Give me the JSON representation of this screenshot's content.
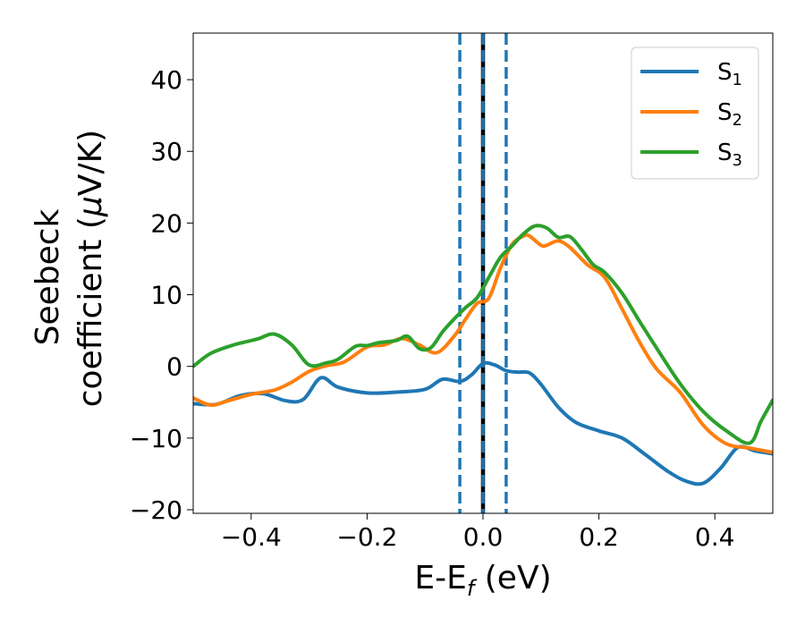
{
  "chart_data": {
    "type": "line",
    "title": "",
    "xlabel": "E-E",
    "xlabel_sub": "f",
    "xlabel_unit": " (eV)",
    "ylabel_line1": "Seebeck",
    "ylabel_line2": "coefficient  (",
    "ylabel_mu": "μ",
    "ylabel_unit_tail": "V/K)",
    "xlim": [
      -0.5,
      0.5
    ],
    "ylim": [
      -20.5,
      46.5
    ],
    "xticks": [
      -0.4,
      -0.2,
      0.0,
      0.2,
      0.4
    ],
    "xtick_labels": [
      "−0.4",
      "−0.2",
      "0.0",
      "0.2",
      "0.4"
    ],
    "yticks": [
      -20,
      -10,
      0,
      10,
      20,
      30,
      40
    ],
    "ytick_labels": [
      "−20",
      "−10",
      "0",
      "10",
      "20",
      "30",
      "40"
    ],
    "grid": false,
    "legend_position": "top-right",
    "vlines": [
      {
        "x": -0.04,
        "style": "dashed",
        "color": "#1f77b4"
      },
      {
        "x": 0.0,
        "style": "solid",
        "color": "#000000"
      },
      {
        "x": 0.0,
        "style": "dashed",
        "color": "#1f77b4"
      },
      {
        "x": 0.04,
        "style": "dashed",
        "color": "#1f77b4"
      }
    ],
    "series": [
      {
        "name": "S",
        "name_sub": "1",
        "color": "#1f77b4",
        "x": [
          -0.5,
          -0.46,
          -0.42,
          -0.38,
          -0.34,
          -0.31,
          -0.28,
          -0.25,
          -0.2,
          -0.15,
          -0.1,
          -0.07,
          -0.04,
          -0.02,
          0.0,
          0.02,
          0.04,
          0.06,
          0.08,
          0.1,
          0.13,
          0.16,
          0.2,
          0.24,
          0.28,
          0.32,
          0.35,
          0.38,
          0.41,
          0.44,
          0.47,
          0.5
        ],
        "y": [
          -5.2,
          -5.3,
          -4.1,
          -3.8,
          -4.8,
          -4.6,
          -1.6,
          -2.9,
          -3.7,
          -3.6,
          -3.2,
          -1.8,
          -2.1,
          -1.2,
          0.4,
          0.2,
          -0.6,
          -0.8,
          -0.9,
          -2.5,
          -5.7,
          -7.8,
          -9.0,
          -10.0,
          -12.3,
          -14.7,
          -16.0,
          -16.3,
          -14.2,
          -11.3,
          -11.8,
          -12.2
        ]
      },
      {
        "name": "S",
        "name_sub": "2",
        "color": "#ff7f0e",
        "x": [
          -0.5,
          -0.47,
          -0.44,
          -0.4,
          -0.36,
          -0.33,
          -0.3,
          -0.27,
          -0.24,
          -0.2,
          -0.17,
          -0.14,
          -0.11,
          -0.08,
          -0.05,
          -0.03,
          -0.01,
          0.01,
          0.03,
          0.05,
          0.07,
          0.08,
          0.1,
          0.11,
          0.13,
          0.15,
          0.18,
          0.21,
          0.24,
          0.27,
          0.3,
          0.34,
          0.38,
          0.42,
          0.46,
          0.5
        ],
        "y": [
          -4.4,
          -5.4,
          -4.8,
          -3.9,
          -3.3,
          -2.2,
          -0.7,
          0.1,
          0.6,
          2.7,
          3.0,
          3.9,
          3.0,
          1.9,
          4.2,
          6.6,
          8.8,
          9.5,
          13.7,
          17.0,
          18.2,
          18.2,
          16.9,
          16.9,
          17.5,
          16.6,
          14.2,
          12.4,
          8.0,
          3.4,
          -0.4,
          -3.6,
          -8.2,
          -10.8,
          -11.4,
          -12.0
        ]
      },
      {
        "name": "S",
        "name_sub": "3",
        "color": "#2ca02c",
        "x": [
          -0.5,
          -0.47,
          -0.43,
          -0.39,
          -0.36,
          -0.33,
          -0.3,
          -0.27,
          -0.25,
          -0.22,
          -0.2,
          -0.18,
          -0.15,
          -0.13,
          -0.11,
          -0.09,
          -0.07,
          -0.05,
          -0.03,
          -0.01,
          0.01,
          0.03,
          0.05,
          0.07,
          0.09,
          0.11,
          0.13,
          0.15,
          0.17,
          0.19,
          0.21,
          0.24,
          0.27,
          0.3,
          0.34,
          0.38,
          0.42,
          0.46,
          0.48,
          0.5
        ],
        "y": [
          0.0,
          1.8,
          3.0,
          3.8,
          4.5,
          3.0,
          0.2,
          0.5,
          1.0,
          2.8,
          2.9,
          3.3,
          3.6,
          4.2,
          2.5,
          2.6,
          4.8,
          6.6,
          8.2,
          9.6,
          12.4,
          15.2,
          16.8,
          18.5,
          19.6,
          19.3,
          18.0,
          18.1,
          16.3,
          14.2,
          13.1,
          10.2,
          6.3,
          2.5,
          -2.4,
          -6.3,
          -9.0,
          -10.7,
          -7.6,
          -4.7
        ]
      }
    ]
  }
}
